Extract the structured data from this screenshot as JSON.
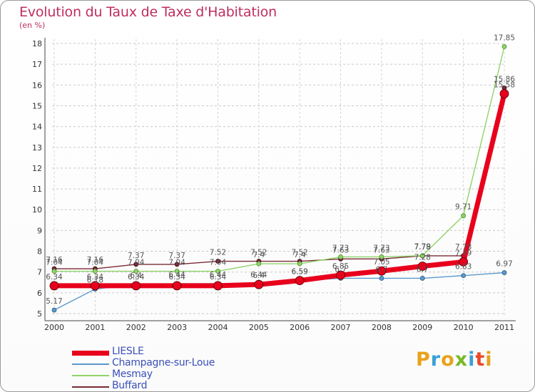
{
  "page": {
    "title": "Evolution du Taux de Taxe d'Habitation",
    "unit": "(en %)",
    "brand": "Proxiti",
    "brand_colors": [
      "#e8a21a",
      "#3aa0d8",
      "#e8a21a",
      "#78b828",
      "#3aa0d8",
      "#e84a2a",
      "#e8a21a"
    ]
  },
  "chart_data": {
    "type": "line",
    "title": "Evolution du Taux de Taxe d'Habitation",
    "ylabel": "(en %)",
    "xlabel": "",
    "x": [
      "2000",
      "2001",
      "2002",
      "2003",
      "2004",
      "2005",
      "2006",
      "2007",
      "2008",
      "2009",
      "2010",
      "2011"
    ],
    "ylim": [
      5,
      18
    ],
    "yticks": [
      "5",
      "6",
      "7",
      "8",
      "9",
      "10",
      "11",
      "12",
      "13",
      "14",
      "15",
      "16",
      "17",
      "18"
    ],
    "grid": true,
    "legend_position": "bottom-left",
    "series": [
      {
        "name": "LIESLE",
        "color": "#e8001c",
        "values": [
          6.34,
          6.34,
          6.34,
          6.34,
          6.34,
          6.4,
          6.59,
          6.85,
          7.05,
          7.28,
          7.49,
          15.58
        ],
        "labels": [
          "6.34",
          "6.34",
          "6.34",
          "6.34",
          "6.34",
          "6.4",
          "6.59",
          "6.85",
          "7.05",
          "7.28",
          "7.49",
          "15.58"
        ]
      },
      {
        "name": "Champagne-sur-Loue",
        "color": "#5b98cb",
        "values": [
          5.17,
          6.18,
          6.4,
          6.44,
          6.44,
          6.44,
          6.59,
          6.7,
          6.7,
          6.7,
          6.83,
          6.97
        ],
        "labels": [
          "5.17",
          "6.18",
          "6.4",
          "6.44",
          "6.44",
          "6.44",
          "6.59",
          "6.7",
          "6.7",
          "6.7",
          "6.83",
          "6.97"
        ]
      },
      {
        "name": "Mesmay",
        "color": "#8fd468",
        "values": [
          7.04,
          7.04,
          7.04,
          7.04,
          7.04,
          7.4,
          7.4,
          7.73,
          7.73,
          7.79,
          9.71,
          17.85
        ],
        "labels": [
          "7.04",
          "7.04",
          "7.04",
          "7.04",
          "7.04",
          "7.4",
          "7.4",
          "7.73",
          "7.73",
          "7.79",
          "9.71",
          "17.85"
        ]
      },
      {
        "name": "Buffard",
        "color": "#7a2a36",
        "values": [
          7.16,
          7.16,
          7.37,
          7.37,
          7.52,
          7.52,
          7.52,
          7.63,
          7.63,
          7.78,
          7.78,
          15.86
        ],
        "labels": [
          "7.16",
          "7.16",
          "7.37",
          "7.37",
          "7.52",
          "7.52",
          "7.52",
          "7.63",
          "7.63",
          "7.78",
          "7.78",
          "15.86"
        ]
      }
    ]
  }
}
